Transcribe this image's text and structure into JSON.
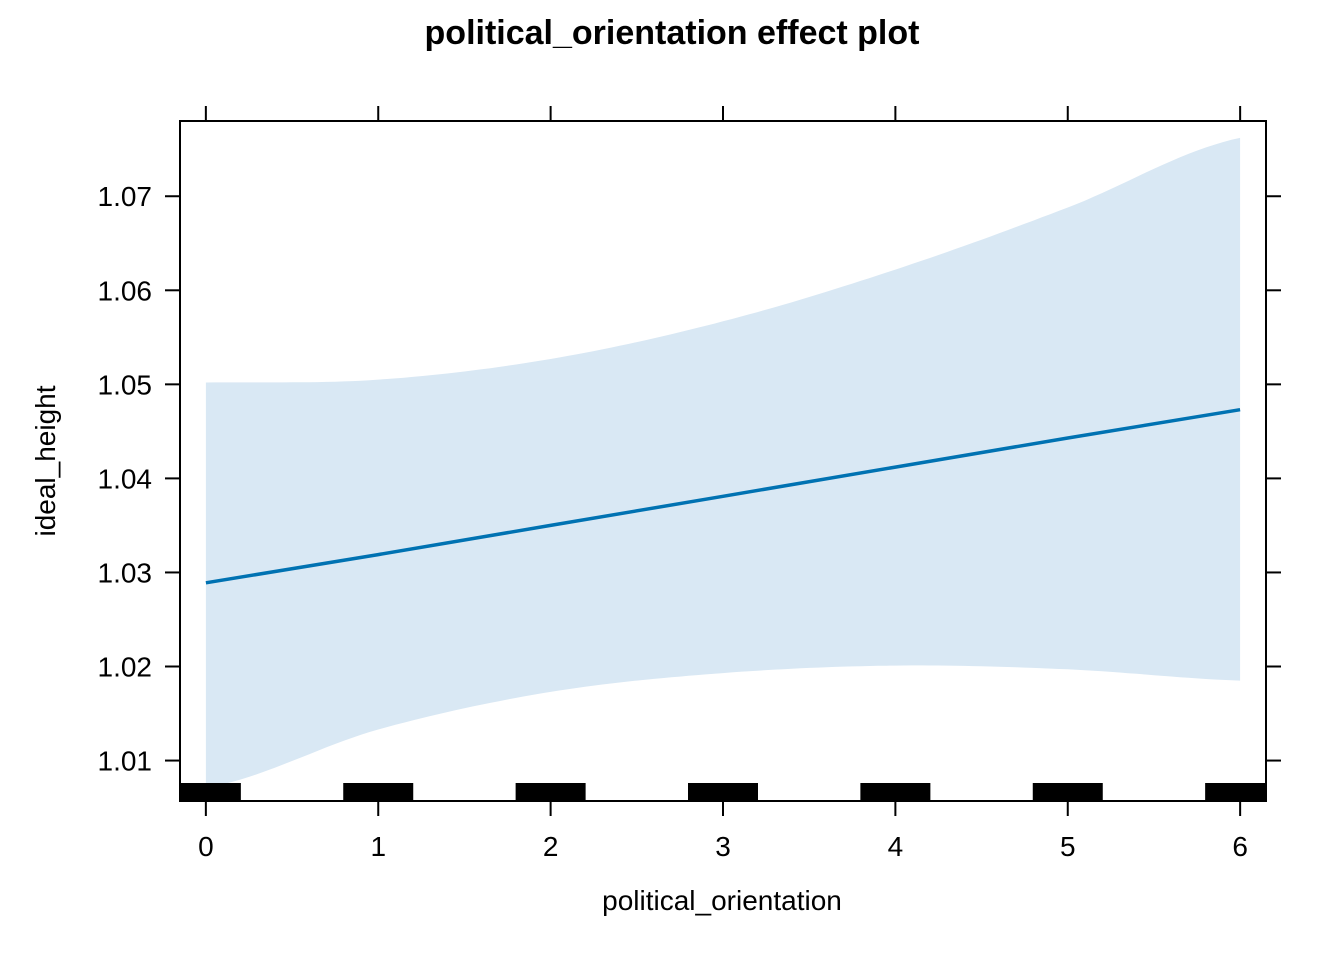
{
  "chart_data": {
    "type": "line",
    "title": "political_orientation effect plot",
    "xlabel": "political_orientation",
    "ylabel": "ideal_height",
    "xlim": [
      -0.15,
      6.15
    ],
    "ylim": [
      1.0057,
      1.078
    ],
    "x_ticks": [
      0,
      1,
      2,
      3,
      4,
      5,
      6
    ],
    "x_tick_labels": [
      "0",
      "1",
      "2",
      "3",
      "4",
      "5",
      "6"
    ],
    "y_ticks": [
      1.01,
      1.02,
      1.03,
      1.04,
      1.05,
      1.06,
      1.07
    ],
    "y_tick_labels": [
      "1.01",
      "1.02",
      "1.03",
      "1.04",
      "1.05",
      "1.06",
      "1.07"
    ],
    "grid": false,
    "series": [
      {
        "x": [
          0,
          1,
          2,
          3,
          4,
          5,
          6
        ],
        "values": [
          1.0289,
          1.0319,
          1.035,
          1.0381,
          1.0412,
          1.0443,
          1.0473
        ],
        "lower": [
          1.0071,
          1.0133,
          1.0173,
          1.0193,
          1.0201,
          1.0197,
          1.0185
        ],
        "upper": [
          1.0502,
          1.0505,
          1.0527,
          1.0567,
          1.0622,
          1.0688,
          1.0762
        ]
      }
    ],
    "rug_x": [
      0,
      1,
      2,
      3,
      4,
      5,
      6
    ],
    "colors": {
      "line": "#0072b2",
      "band": "#d9e8f4",
      "axis": "#000000",
      "rug": "#000000"
    }
  }
}
